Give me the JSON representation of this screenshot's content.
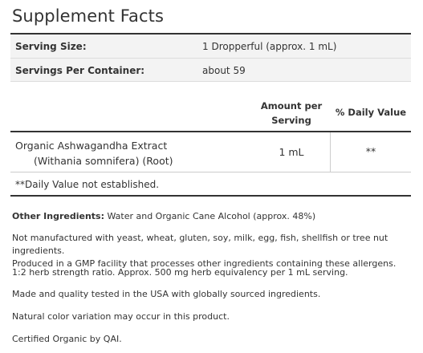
{
  "title": "Supplement Facts",
  "serving": {
    "size_label": "Serving Size:",
    "size_value": "1 Dropperful (approx. 1 mL)",
    "per_container_label": "Servings Per Container:",
    "per_container_value": "about 59"
  },
  "columns": {
    "amount_line1": "Amount per",
    "amount_line2": "Serving",
    "daily_value": "% Daily Value"
  },
  "ingredient": {
    "name": "Organic Ashwagandha Extract",
    "detail": "(Withania somnifera) (Root)",
    "amount": "1 mL",
    "daily_value": "**"
  },
  "footnote": "**Daily Value not established.",
  "notes": {
    "other_label": "Other Ingredients:",
    "other_text": " Water and Organic Cane Alcohol (approx. 48%)",
    "allergen_line1": "Not manufactured with yeast, wheat, gluten, soy, milk, egg, fish, shellfish or tree nut ingredients.",
    "allergen_line2": "Produced in a GMP facility that processes other ingredients containing these allergens.",
    "strength": "1:2 herb strength ratio. Approx. 500 mg herb equivalency per 1 mL serving.",
    "quality": "Made and quality tested in the USA with globally sourced ingredients.",
    "color": "Natural color variation may occur in this product.",
    "certified": "Certified Organic by QAI."
  }
}
